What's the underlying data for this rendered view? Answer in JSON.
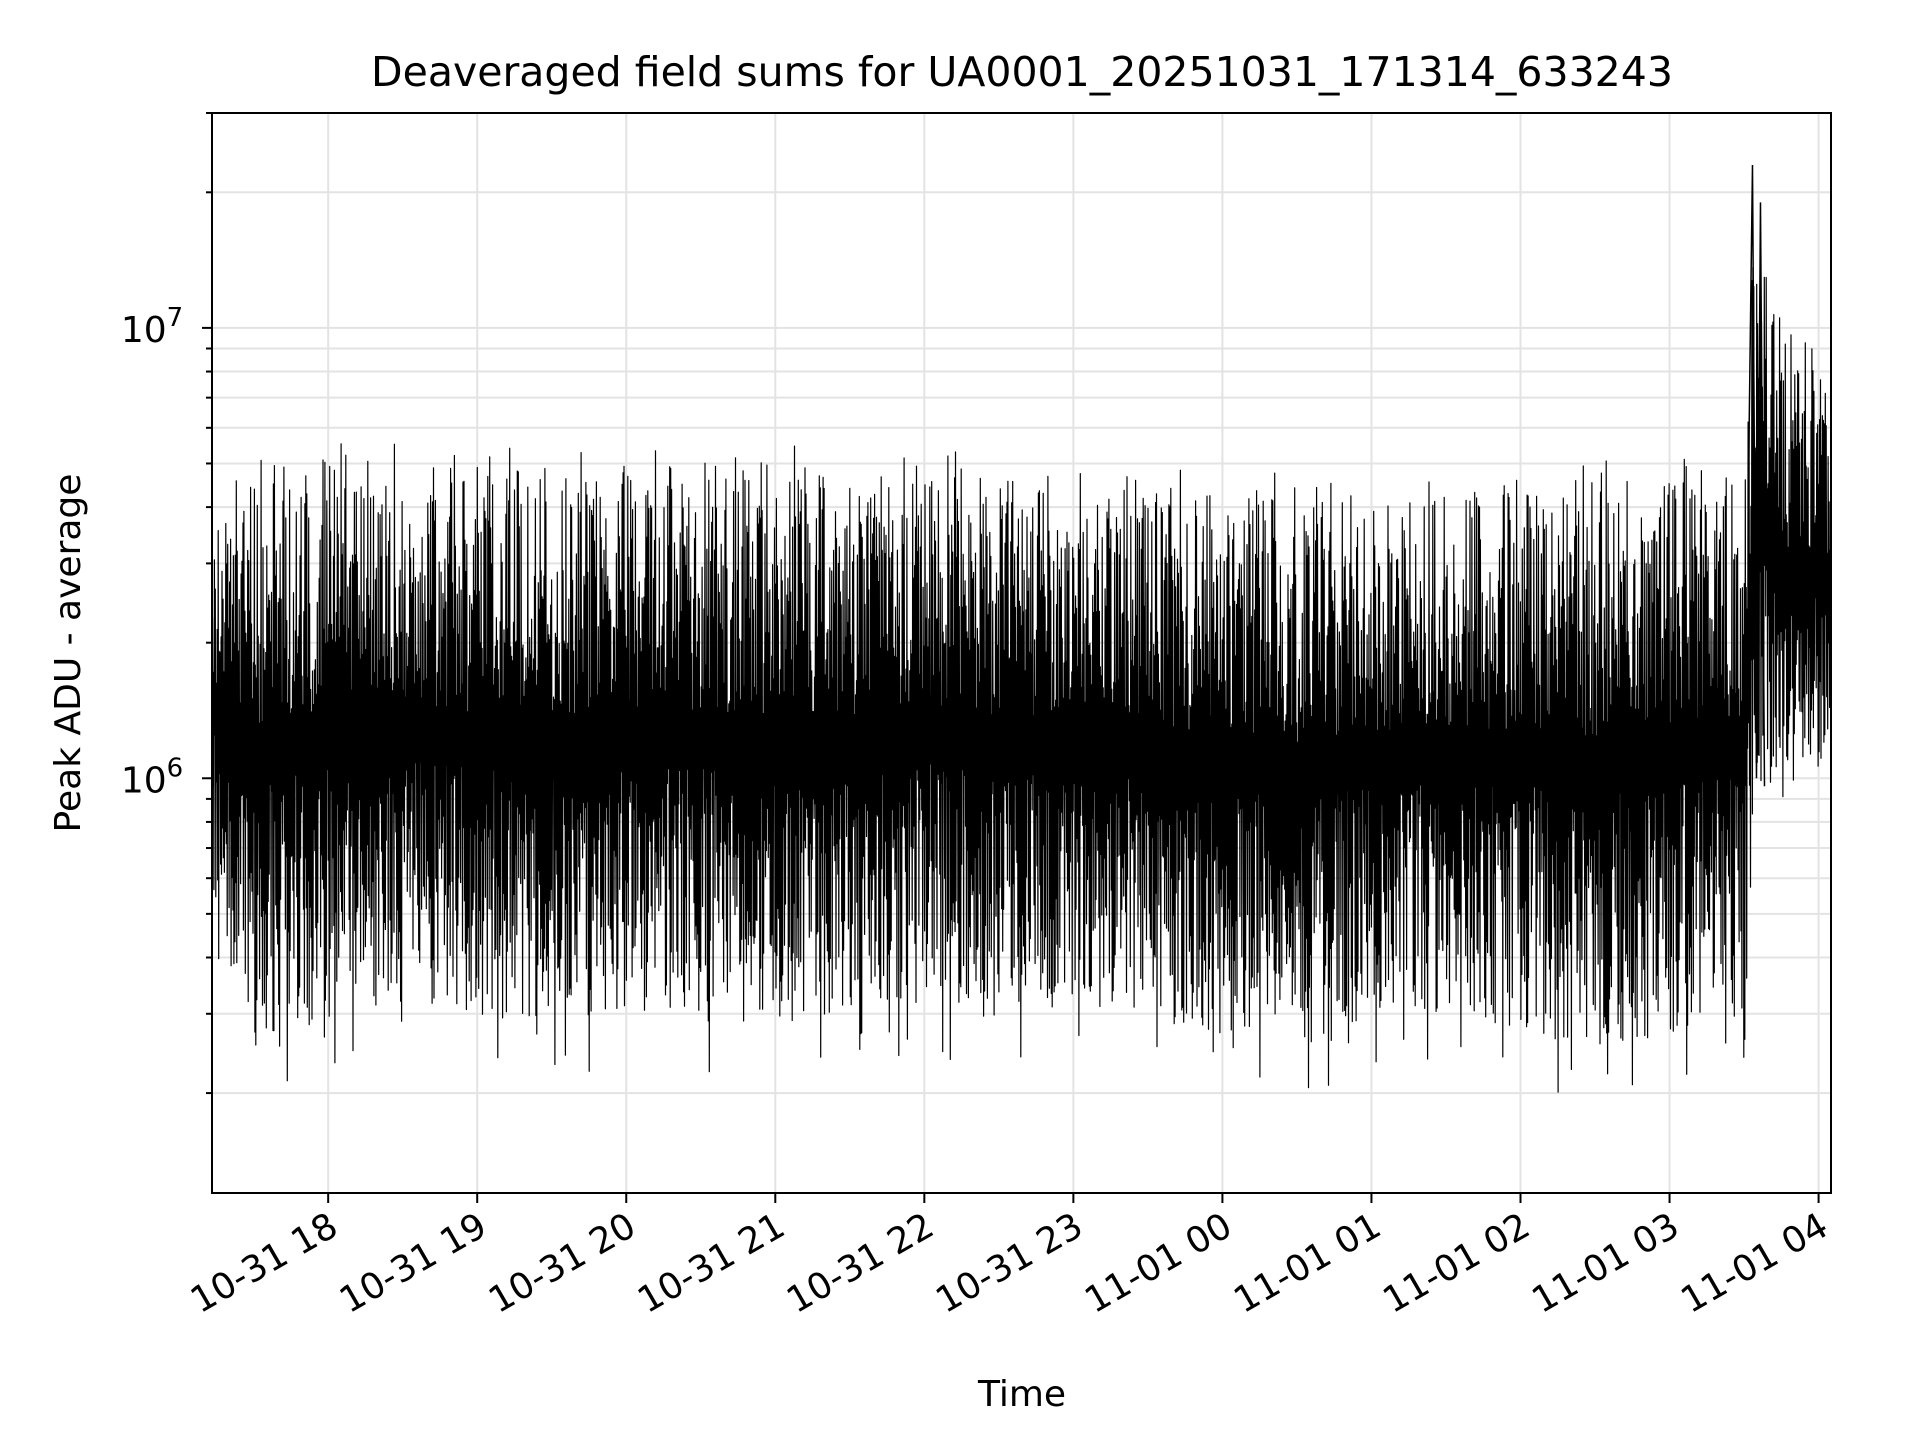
{
  "chart_data": {
    "type": "line",
    "title": "Deaveraged field sums for UA0001_20251031_171314_633243",
    "xlabel": "Time",
    "ylabel": "Peak ADU - average",
    "yscale": "log",
    "xlim": [
      "2025-10-31 17:13:14",
      "2025-11-01 04:05"
    ],
    "ylim": [
      120000,
      30000000
    ],
    "x_ticks": [
      "10-31 18",
      "10-31 19",
      "10-31 20",
      "10-31 21",
      "10-31 22",
      "10-31 23",
      "11-01 00",
      "11-01 01",
      "11-01 02",
      "11-01 03",
      "11-01 04"
    ],
    "y_ticks": [
      {
        "base": "10",
        "exp": "6",
        "value": 1000000
      },
      {
        "base": "10",
        "exp": "7",
        "value": 10000000
      }
    ],
    "grid": true,
    "line_color": "#000000",
    "series": [
      {
        "x": [
          "2025-10-31 17:13:14",
          "2025-10-31 17:30",
          "2025-10-31 18:00",
          "2025-10-31 18:30",
          "2025-10-31 19:00",
          "2025-10-31 19:30",
          "2025-10-31 20:00",
          "2025-10-31 20:30",
          "2025-10-31 21:00",
          "2025-10-31 21:30",
          "2025-10-31 22:00",
          "2025-10-31 22:30",
          "2025-10-31 23:00",
          "2025-10-31 23:30",
          "2025-11-01 00:00",
          "2025-11-01 00:30",
          "2025-11-01 01:00",
          "2025-11-01 01:30",
          "2025-11-01 02:00",
          "2025-11-01 02:30",
          "2025-11-01 03:00",
          "2025-11-01 03:15",
          "2025-11-01 03:30",
          "2025-11-01 03:35",
          "2025-11-01 03:45",
          "2025-11-01 04:00",
          "2025-11-01 04:05"
        ],
        "upper": [
          3600000,
          5000000,
          5100000,
          5000000,
          4900000,
          4800000,
          4700000,
          5200000,
          5000000,
          4800000,
          4900000,
          4600000,
          4300000,
          4200000,
          4600000,
          4100000,
          4200000,
          4100000,
          4400000,
          4500000,
          4600000,
          4600000,
          4700000,
          23000000,
          9000000,
          8500000,
          6000000
        ],
        "lower": [
          550000,
          250000,
          300000,
          320000,
          300000,
          280000,
          310000,
          290000,
          280000,
          300000,
          320000,
          290000,
          330000,
          300000,
          260000,
          260000,
          290000,
          300000,
          280000,
          250000,
          270000,
          280000,
          290000,
          950000,
          950000,
          950000,
          1400000
        ]
      }
    ]
  }
}
